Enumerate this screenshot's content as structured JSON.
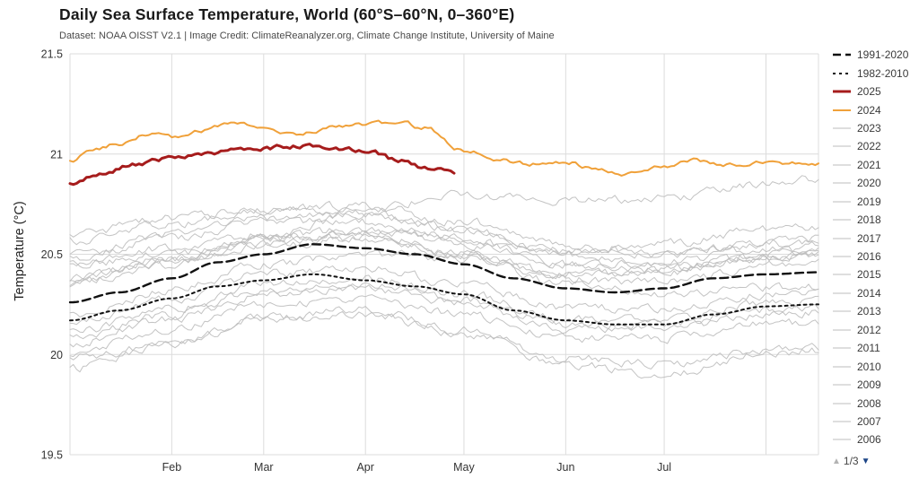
{
  "chart_data": {
    "type": "line",
    "title": "Daily Sea Surface Temperature, World (60°S–60°N, 0–360°E)",
    "subtitle": "Dataset: NOAA OISST V2.1 | Image Credit: ClimateReanalyzer.org, Climate Change Institute, University of Maine",
    "ylabel": "Temperature (°C)",
    "ylim": [
      19.5,
      21.5
    ],
    "yticks": [
      {
        "v": 19.5,
        "label": "19.5"
      },
      {
        "v": 20.0,
        "label": "20"
      },
      {
        "v": 20.5,
        "label": "20.5"
      },
      {
        "v": 21.0,
        "label": "21"
      },
      {
        "v": 21.5,
        "label": "21.5"
      }
    ],
    "x_domain_days": [
      0,
      228
    ],
    "month_ticks": [
      {
        "day": 31,
        "label": "Feb"
      },
      {
        "day": 59,
        "label": "Mar"
      },
      {
        "day": 90,
        "label": "Apr"
      },
      {
        "day": 120,
        "label": "May"
      },
      {
        "day": 151,
        "label": "Jun"
      },
      {
        "day": 181,
        "label": "Jul"
      },
      {
        "day": 212,
        "label": ""
      }
    ],
    "grid_color": "#dcdcdc",
    "series": [
      {
        "name": "1991-2020",
        "color": "#111111",
        "width": 2.4,
        "dash": "9,5",
        "noise": 0,
        "zorder": 3,
        "points": [
          [
            0,
            20.26
          ],
          [
            15,
            20.31
          ],
          [
            31,
            20.38
          ],
          [
            45,
            20.46
          ],
          [
            59,
            20.5
          ],
          [
            74,
            20.55
          ],
          [
            90,
            20.53
          ],
          [
            105,
            20.5
          ],
          [
            120,
            20.45
          ],
          [
            135,
            20.38
          ],
          [
            151,
            20.33
          ],
          [
            166,
            20.31
          ],
          [
            181,
            20.33
          ],
          [
            196,
            20.38
          ],
          [
            212,
            20.4
          ],
          [
            228,
            20.41
          ]
        ]
      },
      {
        "name": "1982-2010",
        "color": "#111111",
        "width": 2,
        "dash": "3,4",
        "noise": 0,
        "zorder": 2,
        "points": [
          [
            0,
            20.17
          ],
          [
            15,
            20.22
          ],
          [
            31,
            20.28
          ],
          [
            45,
            20.34
          ],
          [
            59,
            20.37
          ],
          [
            74,
            20.4
          ],
          [
            90,
            20.37
          ],
          [
            105,
            20.34
          ],
          [
            120,
            20.3
          ],
          [
            135,
            20.22
          ],
          [
            151,
            20.17
          ],
          [
            166,
            20.15
          ],
          [
            181,
            20.15
          ],
          [
            196,
            20.2
          ],
          [
            212,
            20.24
          ],
          [
            228,
            20.25
          ]
        ]
      },
      {
        "name": "2025",
        "color": "#a61c1c",
        "width": 3,
        "dash": null,
        "noise": 0.008,
        "zorder": 5,
        "points": [
          [
            0,
            20.85
          ],
          [
            10,
            20.9
          ],
          [
            20,
            20.95
          ],
          [
            31,
            20.98
          ],
          [
            45,
            21.01
          ],
          [
            59,
            21.03
          ],
          [
            70,
            21.04
          ],
          [
            80,
            21.03
          ],
          [
            90,
            21.02
          ],
          [
            100,
            20.97
          ],
          [
            108,
            20.93
          ],
          [
            113,
            20.92
          ],
          [
            117,
            20.91
          ]
        ]
      },
      {
        "name": "2024",
        "color": "#f0a13a",
        "width": 2,
        "dash": null,
        "noise": 0.008,
        "zorder": 4,
        "points": [
          [
            0,
            20.97
          ],
          [
            8,
            21.03
          ],
          [
            15,
            21.05
          ],
          [
            25,
            21.1
          ],
          [
            31,
            21.08
          ],
          [
            40,
            21.12
          ],
          [
            50,
            21.16
          ],
          [
            59,
            21.12
          ],
          [
            70,
            21.1
          ],
          [
            80,
            21.13
          ],
          [
            90,
            21.15
          ],
          [
            100,
            21.16
          ],
          [
            108,
            21.13
          ],
          [
            120,
            21.02
          ],
          [
            130,
            20.97
          ],
          [
            140,
            20.95
          ],
          [
            151,
            20.96
          ],
          [
            160,
            20.93
          ],
          [
            170,
            20.9
          ],
          [
            181,
            20.94
          ],
          [
            190,
            20.97
          ],
          [
            200,
            20.95
          ],
          [
            212,
            20.96
          ],
          [
            228,
            20.95
          ]
        ]
      },
      {
        "name": "2023",
        "color": "#bdbdbd",
        "width": 1,
        "dash": null,
        "noise": 0.016,
        "zorder": 1,
        "points": [
          [
            0,
            20.45
          ],
          [
            31,
            20.5
          ],
          [
            59,
            20.58
          ],
          [
            90,
            20.72
          ],
          [
            120,
            20.8
          ],
          [
            151,
            20.76
          ],
          [
            181,
            20.78
          ],
          [
            212,
            20.85
          ],
          [
            228,
            20.88
          ]
        ]
      },
      {
        "name": "2022",
        "color": "#bdbdbd",
        "width": 1,
        "dash": null,
        "noise": 0.016,
        "zorder": 1,
        "points": [
          [
            0,
            20.45
          ],
          [
            31,
            20.53
          ],
          [
            59,
            20.6
          ],
          [
            90,
            20.62
          ],
          [
            120,
            20.55
          ],
          [
            151,
            20.45
          ],
          [
            181,
            20.46
          ],
          [
            212,
            20.53
          ],
          [
            228,
            20.55
          ]
        ]
      },
      {
        "name": "2021",
        "color": "#bdbdbd",
        "width": 1,
        "dash": null,
        "noise": 0.016,
        "zorder": 1,
        "points": [
          [
            0,
            20.38
          ],
          [
            31,
            20.46
          ],
          [
            59,
            20.55
          ],
          [
            90,
            20.58
          ],
          [
            120,
            20.5
          ],
          [
            151,
            20.4
          ],
          [
            181,
            20.41
          ],
          [
            212,
            20.48
          ],
          [
            228,
            20.5
          ]
        ]
      },
      {
        "name": "2020",
        "color": "#bdbdbd",
        "width": 1,
        "dash": null,
        "noise": 0.016,
        "zorder": 1,
        "points": [
          [
            0,
            20.57
          ],
          [
            31,
            20.65
          ],
          [
            59,
            20.72
          ],
          [
            90,
            20.74
          ],
          [
            120,
            20.66
          ],
          [
            151,
            20.54
          ],
          [
            181,
            20.5
          ],
          [
            212,
            20.55
          ],
          [
            228,
            20.56
          ]
        ]
      },
      {
        "name": "2019",
        "color": "#bdbdbd",
        "width": 1,
        "dash": null,
        "noise": 0.016,
        "zorder": 1,
        "points": [
          [
            0,
            20.5
          ],
          [
            31,
            20.6
          ],
          [
            59,
            20.68
          ],
          [
            90,
            20.7
          ],
          [
            120,
            20.62
          ],
          [
            151,
            20.52
          ],
          [
            181,
            20.5
          ],
          [
            212,
            20.56
          ],
          [
            228,
            20.58
          ]
        ]
      },
      {
        "name": "2018",
        "color": "#bdbdbd",
        "width": 1,
        "dash": null,
        "noise": 0.016,
        "zorder": 1,
        "points": [
          [
            0,
            20.35
          ],
          [
            31,
            20.45
          ],
          [
            59,
            20.55
          ],
          [
            90,
            20.58
          ],
          [
            120,
            20.5
          ],
          [
            151,
            20.38
          ],
          [
            181,
            20.36
          ],
          [
            212,
            20.44
          ],
          [
            228,
            20.46
          ]
        ]
      },
      {
        "name": "2017",
        "color": "#bdbdbd",
        "width": 1,
        "dash": null,
        "noise": 0.016,
        "zorder": 1,
        "points": [
          [
            0,
            20.48
          ],
          [
            31,
            20.58
          ],
          [
            59,
            20.66
          ],
          [
            90,
            20.66
          ],
          [
            120,
            20.58
          ],
          [
            151,
            20.45
          ],
          [
            181,
            20.42
          ],
          [
            212,
            20.48
          ],
          [
            228,
            20.5
          ]
        ]
      },
      {
        "name": "2016",
        "color": "#bdbdbd",
        "width": 1,
        "dash": null,
        "noise": 0.016,
        "zorder": 1,
        "points": [
          [
            0,
            20.6
          ],
          [
            31,
            20.68
          ],
          [
            59,
            20.72
          ],
          [
            90,
            20.7
          ],
          [
            120,
            20.62
          ],
          [
            151,
            20.5
          ],
          [
            181,
            20.45
          ],
          [
            212,
            20.48
          ],
          [
            228,
            20.49
          ]
        ]
      },
      {
        "name": "2015",
        "color": "#bdbdbd",
        "width": 1,
        "dash": null,
        "noise": 0.016,
        "zorder": 1,
        "points": [
          [
            0,
            20.38
          ],
          [
            31,
            20.48
          ],
          [
            59,
            20.58
          ],
          [
            90,
            20.62
          ],
          [
            120,
            20.58
          ],
          [
            151,
            20.52
          ],
          [
            181,
            20.55
          ],
          [
            212,
            20.62
          ],
          [
            228,
            20.64
          ]
        ]
      },
      {
        "name": "2014",
        "color": "#bdbdbd",
        "width": 1,
        "dash": null,
        "noise": 0.016,
        "zorder": 1,
        "points": [
          [
            0,
            20.2
          ],
          [
            31,
            20.32
          ],
          [
            59,
            20.45
          ],
          [
            90,
            20.5
          ],
          [
            120,
            20.48
          ],
          [
            151,
            20.4
          ],
          [
            181,
            20.42
          ],
          [
            212,
            20.5
          ],
          [
            228,
            20.52
          ]
        ]
      },
      {
        "name": "2013",
        "color": "#bdbdbd",
        "width": 1,
        "dash": null,
        "noise": 0.016,
        "zorder": 1,
        "points": [
          [
            0,
            20.16
          ],
          [
            31,
            20.28
          ],
          [
            59,
            20.4
          ],
          [
            90,
            20.43
          ],
          [
            120,
            20.35
          ],
          [
            151,
            20.23
          ],
          [
            181,
            20.23
          ],
          [
            212,
            20.3
          ],
          [
            228,
            20.31
          ]
        ]
      },
      {
        "name": "2012",
        "color": "#bdbdbd",
        "width": 1,
        "dash": null,
        "noise": 0.016,
        "zorder": 1,
        "points": [
          [
            0,
            20.01
          ],
          [
            31,
            20.13
          ],
          [
            59,
            20.25
          ],
          [
            90,
            20.28
          ],
          [
            120,
            20.2
          ],
          [
            151,
            20.08
          ],
          [
            181,
            20.08
          ],
          [
            212,
            20.15
          ],
          [
            228,
            20.16
          ]
        ]
      },
      {
        "name": "2011",
        "color": "#bdbdbd",
        "width": 1,
        "dash": null,
        "noise": 0.016,
        "zorder": 1,
        "points": [
          [
            0,
            19.93
          ],
          [
            31,
            20.05
          ],
          [
            59,
            20.18
          ],
          [
            90,
            20.22
          ],
          [
            120,
            20.12
          ],
          [
            151,
            19.98
          ],
          [
            181,
            19.95
          ],
          [
            212,
            20.02
          ],
          [
            228,
            20.03
          ]
        ]
      },
      {
        "name": "2010",
        "color": "#bdbdbd",
        "width": 1,
        "dash": null,
        "noise": 0.016,
        "zorder": 1,
        "points": [
          [
            0,
            20.35
          ],
          [
            31,
            20.48
          ],
          [
            59,
            20.58
          ],
          [
            90,
            20.6
          ],
          [
            120,
            20.5
          ],
          [
            151,
            20.35
          ],
          [
            181,
            20.3
          ],
          [
            212,
            20.33
          ],
          [
            228,
            20.34
          ]
        ]
      },
      {
        "name": "2009",
        "color": "#bdbdbd",
        "width": 1,
        "dash": null,
        "noise": 0.016,
        "zorder": 1,
        "points": [
          [
            0,
            20.08
          ],
          [
            31,
            20.2
          ],
          [
            59,
            20.32
          ],
          [
            90,
            20.35
          ],
          [
            120,
            20.27
          ],
          [
            151,
            20.15
          ],
          [
            181,
            20.15
          ],
          [
            212,
            20.22
          ],
          [
            228,
            20.23
          ]
        ]
      },
      {
        "name": "2008",
        "color": "#bdbdbd",
        "width": 1,
        "dash": null,
        "noise": 0.016,
        "zorder": 1,
        "points": [
          [
            0,
            19.98
          ],
          [
            31,
            20.05
          ],
          [
            59,
            20.18
          ],
          [
            90,
            20.2
          ],
          [
            120,
            20.1
          ],
          [
            151,
            19.95
          ],
          [
            181,
            19.9
          ],
          [
            212,
            20.0
          ],
          [
            228,
            20.02
          ]
        ]
      },
      {
        "name": "2007",
        "color": "#bdbdbd",
        "width": 1,
        "dash": null,
        "noise": 0.016,
        "zorder": 1,
        "points": [
          [
            0,
            20.06
          ],
          [
            31,
            20.18
          ],
          [
            59,
            20.3
          ],
          [
            90,
            20.33
          ],
          [
            120,
            20.25
          ],
          [
            151,
            20.13
          ],
          [
            181,
            20.13
          ],
          [
            212,
            20.2
          ],
          [
            228,
            20.21
          ]
        ]
      },
      {
        "name": "2006",
        "color": "#bdbdbd",
        "width": 1,
        "dash": null,
        "noise": 0.016,
        "zorder": 1,
        "points": [
          [
            0,
            20.11
          ],
          [
            31,
            20.23
          ],
          [
            59,
            20.35
          ],
          [
            90,
            20.38
          ],
          [
            120,
            20.3
          ],
          [
            151,
            20.18
          ],
          [
            181,
            20.18
          ],
          [
            212,
            20.25
          ],
          [
            228,
            20.26
          ]
        ]
      }
    ]
  },
  "legend_pager": {
    "up_icon": "▲",
    "label": "1/3",
    "down_icon": "▼"
  }
}
